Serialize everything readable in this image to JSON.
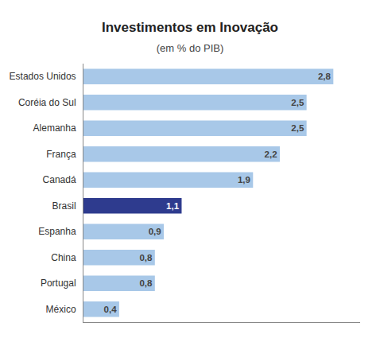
{
  "chart_data": {
    "type": "bar",
    "orientation": "horizontal",
    "title": "Investimentos em Inovação",
    "subtitle": "(em % do PIB)",
    "categories": [
      "México",
      "Portugal",
      "China",
      "Espanha",
      "Brasil",
      "Canadá",
      "França",
      "Alemanha",
      "Coréia do Sul",
      "Estados Unidos"
    ],
    "values": [
      0.4,
      0.8,
      0.8,
      0.9,
      1.1,
      1.9,
      2.2,
      2.5,
      2.5,
      2.8
    ],
    "value_labels": [
      "0,4",
      "0,8",
      "0,8",
      "0,9",
      "1,1",
      "1,9",
      "2,2",
      "2,5",
      "2,5",
      "2,8"
    ],
    "data_labels": true,
    "colors": [
      "#a8c8e8",
      "#a8c8e8",
      "#a8c8e8",
      "#a8c8e8",
      "#2e3b8e",
      "#a8c8e8",
      "#a8c8e8",
      "#a8c8e8",
      "#a8c8e8",
      "#a8c8e8"
    ],
    "xlim": [
      0,
      3.1
    ],
    "xticks": [],
    "tick_labels": "y",
    "grid": false
  }
}
